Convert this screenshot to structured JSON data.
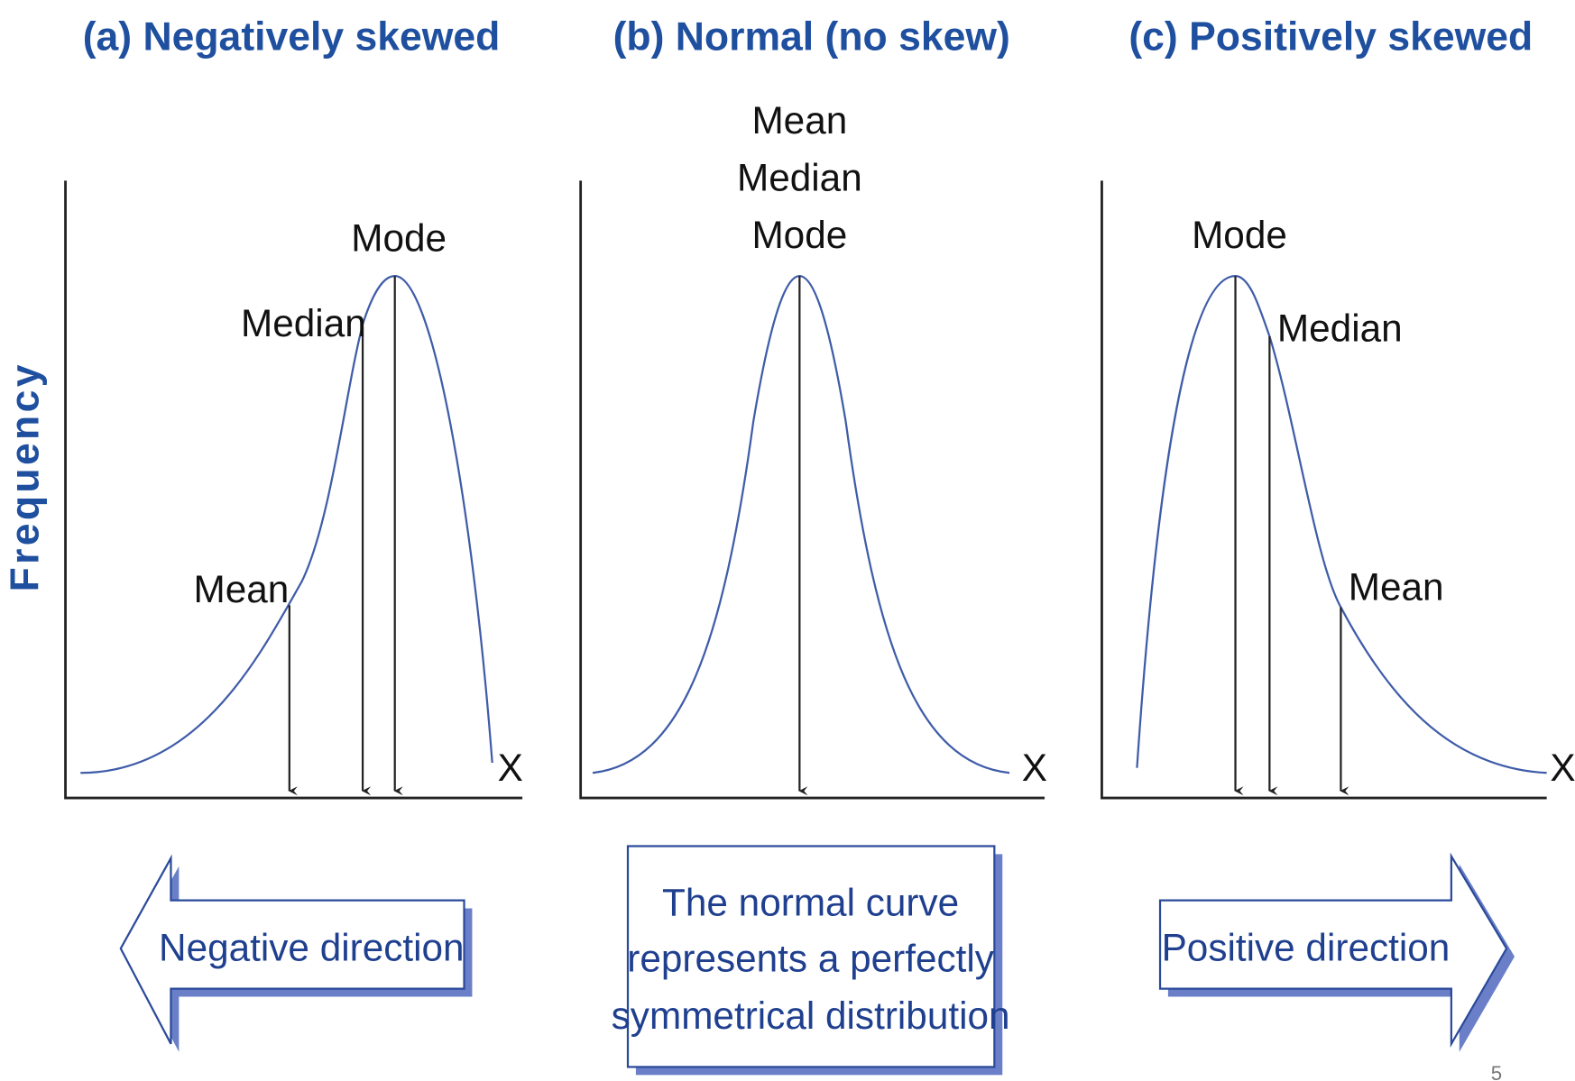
{
  "y_axis_label": "Frequency",
  "panels": [
    {
      "title": "(a) Negatively skewed",
      "x_label": "X",
      "markers": [
        "Mean",
        "Median",
        "Mode"
      ],
      "caption": [
        "Negative direction"
      ]
    },
    {
      "title": "(b) Normal (no skew)",
      "x_label": "X",
      "markers": [
        "Mean",
        "Median",
        "Mode"
      ],
      "caption": [
        "The normal curve",
        "represents a perfectly",
        "symmetrical distribution"
      ]
    },
    {
      "title": "(c) Positively skewed",
      "x_label": "X",
      "markers": [
        "Mode",
        "Median",
        "Mean"
      ],
      "caption": [
        "Positive direction"
      ]
    }
  ],
  "page_number": "5"
}
